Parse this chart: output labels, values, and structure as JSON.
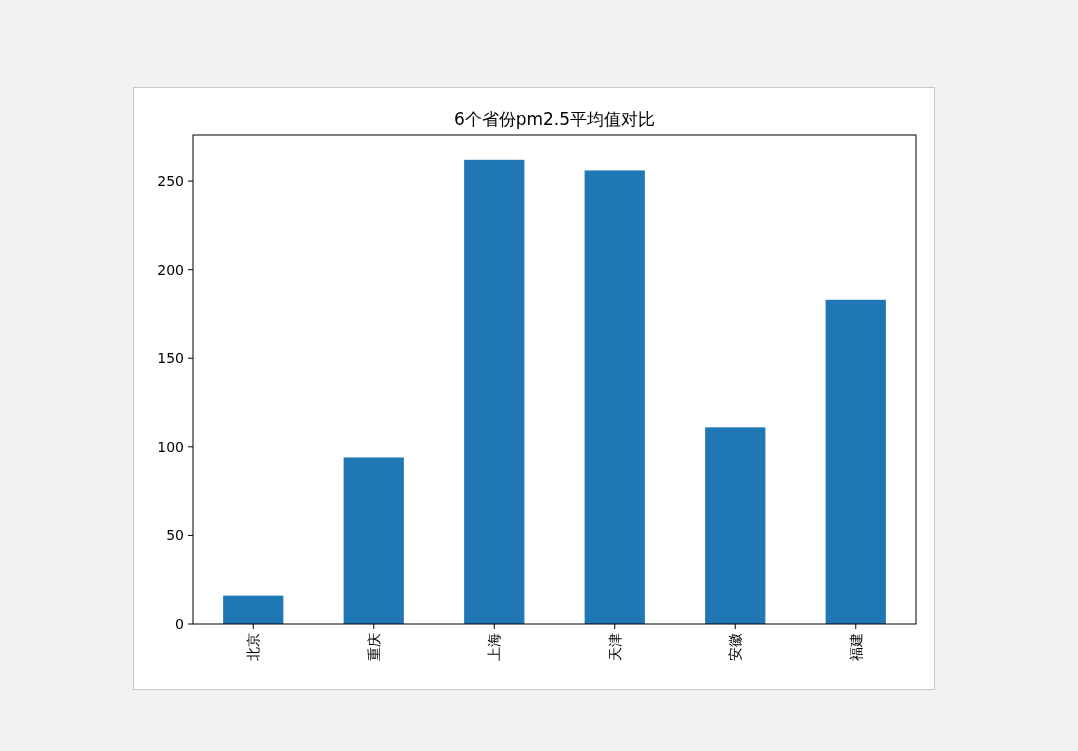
{
  "chart_data": {
    "type": "bar",
    "title": "6个省份pm2.5平均值对比",
    "categories": [
      "北京",
      "重庆",
      "上海",
      "天津",
      "安徽",
      "福建"
    ],
    "values": [
      16,
      94,
      262,
      256,
      111,
      183
    ],
    "color": "#1f77b4",
    "ylim": [
      0,
      276
    ],
    "yticks": [
      0,
      50,
      100,
      150,
      200,
      250
    ],
    "grid": false
  }
}
